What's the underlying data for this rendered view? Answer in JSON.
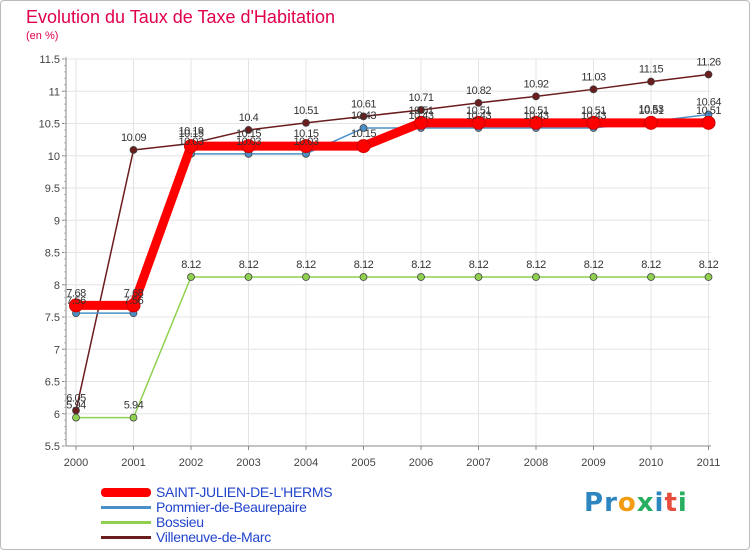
{
  "title": "Evolution du Taux de Taxe d'Habitation",
  "unit_label": "(en %)",
  "brand": {
    "text": "Proxiti",
    "letters": [
      "P",
      "r",
      "o",
      "x",
      "i",
      "t",
      "i"
    ],
    "colors": [
      "#2e86c1",
      "#2e86c1",
      "#f39c12",
      "#27ae60",
      "#2e86c1",
      "#e74c3c",
      "#27ae60"
    ]
  },
  "chart_data": {
    "type": "line",
    "title": "Evolution du Taux de Taxe d'Habitation",
    "ylabel": "(en %)",
    "xlabel": "",
    "x": [
      "2000",
      "2001",
      "2002",
      "2003",
      "2004",
      "2005",
      "2006",
      "2007",
      "2008",
      "2009",
      "2010",
      "2011"
    ],
    "ylim": [
      5.5,
      11.5
    ],
    "yticks": [
      "5.5",
      "6",
      "6.5",
      "7",
      "7.5",
      "8",
      "8.5",
      "9",
      "9.5",
      "10",
      "10.5",
      "11",
      "11.5"
    ],
    "grid": true,
    "series": [
      {
        "name": "Villeneuve-de-Marc",
        "color": "#6b1c1c",
        "values": [
          6.05,
          10.09,
          10.19,
          10.4,
          10.51,
          10.61,
          10.71,
          10.82,
          10.92,
          11.03,
          11.15,
          11.26
        ],
        "labels": [
          "6.05",
          "10.09",
          "10.19",
          "10.4",
          "10.51",
          "10.61",
          "10.71",
          "10.82",
          "10.92",
          "11.03",
          "11.15",
          "11.26"
        ]
      },
      {
        "name": "Bossieu",
        "color": "#8fd14f",
        "values": [
          5.94,
          5.94,
          8.12,
          8.12,
          8.12,
          8.12,
          8.12,
          8.12,
          8.12,
          8.12,
          8.12,
          8.12
        ],
        "labels": [
          "5.94",
          "5.94",
          "8.12",
          "8.12",
          "8.12",
          "8.12",
          "8.12",
          "8.12",
          "8.12",
          "8.12",
          "8.12",
          "8.12"
        ]
      },
      {
        "name": "Pommier-de-Beaurepaire",
        "color": "#4a90c8",
        "values": [
          7.56,
          7.56,
          10.03,
          10.03,
          10.03,
          10.43,
          10.43,
          10.43,
          10.43,
          10.43,
          10.53,
          10.64
        ],
        "labels": [
          "7.56",
          "7.56",
          "10.03",
          "10.03",
          "10.03",
          "10.43",
          "10.43",
          "10.43",
          "10.43",
          "10.43",
          "10.53",
          "10.64"
        ]
      },
      {
        "name": "SAINT-JULIEN-DE-L'HERMS",
        "color": "#ff0000",
        "values": [
          7.68,
          7.68,
          10.15,
          10.15,
          10.15,
          10.15,
          10.51,
          10.51,
          10.51,
          10.51,
          10.51,
          10.51
        ],
        "labels": [
          "7.68",
          "7.68",
          "10.15",
          "10.15",
          "10.15",
          "10.15",
          "10.51",
          "10.51",
          "10.51",
          "10.51",
          "10.51",
          "10.51"
        ]
      }
    ],
    "legend": [
      "SAINT-JULIEN-DE-L'HERMS",
      "Pommier-de-Beaurepaire",
      "Bossieu",
      "Villeneuve-de-Marc"
    ]
  }
}
